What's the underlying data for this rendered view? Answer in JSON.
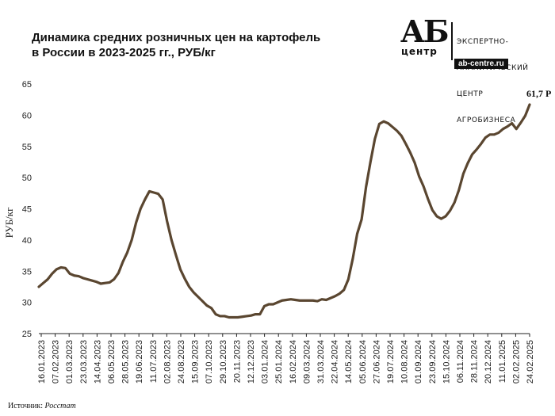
{
  "title_lines": [
    "Динамика средних розничных цен на картофель",
    "в России в 2023-2025 гг., РУБ/кг"
  ],
  "logo": {
    "mark": "АБ",
    "mark_sub": "центр",
    "lines": [
      "ЭКСПЕРТНО-",
      "АНАЛИТИЧЕСКИЙ",
      "ЦЕНТР",
      "АГРОБИЗНЕСА"
    ],
    "url": "ab-centre.ru"
  },
  "source": {
    "label": "Источник:",
    "name": "Росстат"
  },
  "colors": {
    "line": "#5a4630",
    "axis": "#222222"
  },
  "chart_data": {
    "type": "line",
    "ylabel": "РУБ/кг",
    "ylim": [
      25,
      65
    ],
    "yticks": [
      25,
      30,
      35,
      40,
      45,
      50,
      55,
      60,
      65
    ],
    "grid": false,
    "x_tick_labels": [
      "16.01.2023",
      "07.02.2023",
      "01.03.2023",
      "23.03.2023",
      "14.04.2023",
      "06.05.2023",
      "28.05.2023",
      "19.06.2023",
      "11.07.2023",
      "02.08.2023",
      "24.08.2023",
      "15.09.2023",
      "07.10.2023",
      "29.10.2023",
      "20.11.2023",
      "12.12.2023",
      "03.01.2024",
      "25.01.2024",
      "16.02.2024",
      "09.03.2024",
      "31.03.2024",
      "22.04.2024",
      "14.05.2024",
      "05.06.2024",
      "27.06.2024",
      "19.07.2024",
      "10.08.2024",
      "01.09.2024",
      "23.09.2024",
      "15.10.2024",
      "06.11.2024",
      "28.11.2024",
      "20.12.2024",
      "11.01.2025",
      "02.02.2025",
      "24.02.2025"
    ],
    "end_label": "61,7 Р",
    "series": [
      {
        "values": [
          32.5,
          33.1,
          33.7,
          34.6,
          35.3,
          35.6,
          35.5,
          34.6,
          34.3,
          34.2,
          33.9,
          33.7,
          33.5,
          33.3,
          33.0,
          33.1,
          33.2,
          33.7,
          34.7,
          36.5,
          38.0,
          40.0,
          42.8,
          45.0,
          46.5,
          47.8,
          47.6,
          47.4,
          46.5,
          43.0,
          40.0,
          37.6,
          35.3,
          33.8,
          32.5,
          31.6,
          30.9,
          30.2,
          29.5,
          29.1,
          28.1,
          27.8,
          27.8,
          27.6,
          27.6,
          27.6,
          27.7,
          27.8,
          27.9,
          28.1,
          28.1,
          29.4,
          29.7,
          29.7,
          30.0,
          30.3,
          30.4,
          30.5,
          30.4,
          30.3,
          30.3,
          30.3,
          30.3,
          30.2,
          30.5,
          30.4,
          30.7,
          31.0,
          31.4,
          32.0,
          33.7,
          37.0,
          41.0,
          43.3,
          48.5,
          52.5,
          56.2,
          58.6,
          59.0,
          58.7,
          58.1,
          57.5,
          56.7,
          55.4,
          54.0,
          52.4,
          50.2,
          48.6,
          46.6,
          44.8,
          43.8,
          43.4,
          43.8,
          44.7,
          46.0,
          48.0,
          50.6,
          52.3,
          53.7,
          54.5,
          55.4,
          56.4,
          56.9,
          56.9,
          57.2,
          57.8,
          58.2,
          58.7,
          57.8,
          58.8,
          59.9,
          61.7
        ]
      }
    ]
  }
}
